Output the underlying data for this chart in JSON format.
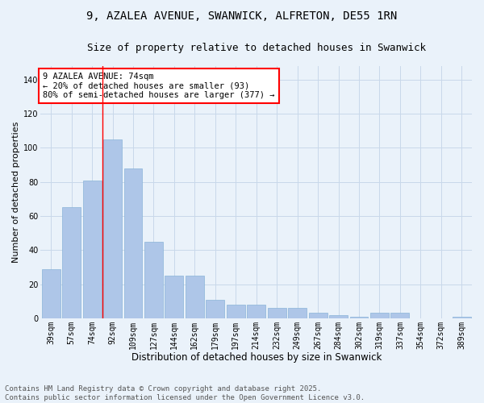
{
  "title": "9, AZALEA AVENUE, SWANWICK, ALFRETON, DE55 1RN",
  "subtitle": "Size of property relative to detached houses in Swanwick",
  "xlabel": "Distribution of detached houses by size in Swanwick",
  "ylabel": "Number of detached properties",
  "categories": [
    "39sqm",
    "57sqm",
    "74sqm",
    "92sqm",
    "109sqm",
    "127sqm",
    "144sqm",
    "162sqm",
    "179sqm",
    "197sqm",
    "214sqm",
    "232sqm",
    "249sqm",
    "267sqm",
    "284sqm",
    "302sqm",
    "319sqm",
    "337sqm",
    "354sqm",
    "372sqm",
    "389sqm"
  ],
  "values": [
    29,
    65,
    81,
    105,
    88,
    45,
    25,
    25,
    11,
    8,
    8,
    6,
    6,
    3,
    2,
    1,
    3,
    3,
    0,
    0,
    1
  ],
  "bar_color": "#aec6e8",
  "bar_edge_color": "#8ab4d8",
  "grid_color": "#c8d8ea",
  "background_color": "#eaf2fa",
  "red_line_x": 2.5,
  "annotation_text": "9 AZALEA AVENUE: 74sqm\n← 20% of detached houses are smaller (93)\n80% of semi-detached houses are larger (377) →",
  "annotation_box_color": "white",
  "annotation_box_edge": "red",
  "ylim": [
    0,
    148
  ],
  "yticks": [
    0,
    20,
    40,
    60,
    80,
    100,
    120,
    140
  ],
  "footer": "Contains HM Land Registry data © Crown copyright and database right 2025.\nContains public sector information licensed under the Open Government Licence v3.0.",
  "title_fontsize": 10,
  "subtitle_fontsize": 9,
  "xlabel_fontsize": 8.5,
  "ylabel_fontsize": 8,
  "tick_fontsize": 7,
  "annotation_fontsize": 7.5,
  "footer_fontsize": 6.5
}
